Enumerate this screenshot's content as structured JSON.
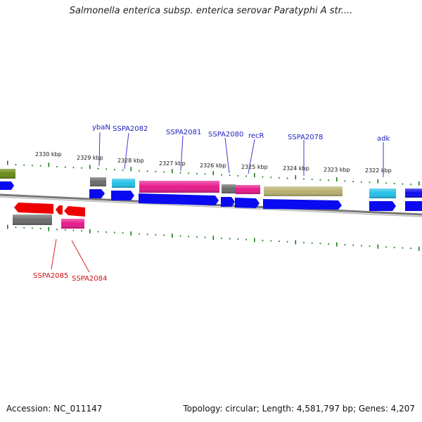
{
  "title": "Salmonella enterica subsp. enterica serovar Paratyphi A str....",
  "accession": "Accession: NC_011147",
  "topology": "Topology: circular; Length: 4,581,797 bp; Genes: 4,207",
  "colors": {
    "forward_label": "#1d1dbf",
    "reverse_label": "#cc1111",
    "tick": "#1a7a1a",
    "blue": "#0a0af0",
    "gray": "#6a6a6a",
    "cyan": "#22c0e8",
    "magenta": "#e6198a",
    "olive": "#b8b070",
    "red": "#ee0000",
    "green": "#6a8a18"
  },
  "kbp_labels": [
    "2330 kbp",
    "2329 kbp",
    "2328 kbp",
    "2327 kbp",
    "2326 kbp",
    "2325 kbp",
    "2324 kbp",
    "2323 kbp",
    "2322 kbp"
  ],
  "forward_gene_labels": [
    "ybaN",
    "SSPA2082",
    "SSPA2081",
    "SSPA2080",
    "recR",
    "SSPA2078",
    "adk"
  ],
  "reverse_gene_labels": [
    "SSPA2085",
    "SSPA2084"
  ]
}
